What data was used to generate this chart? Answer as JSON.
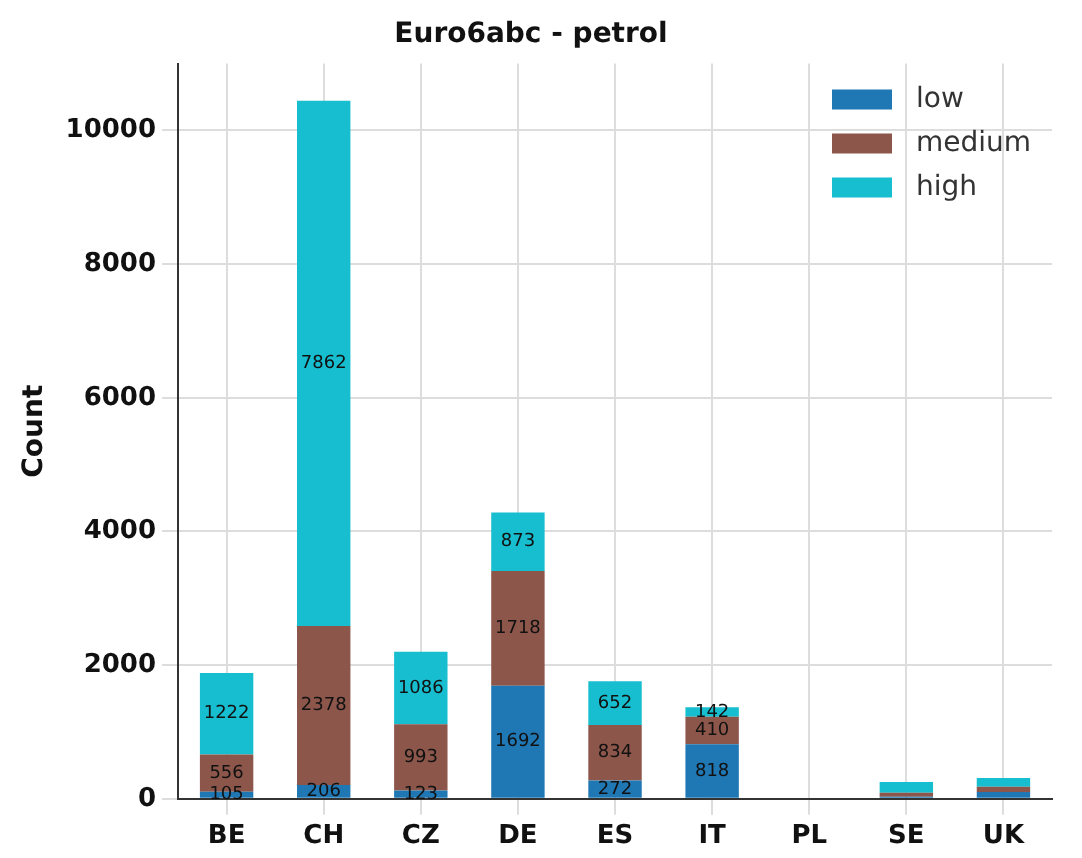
{
  "chart_data": {
    "type": "bar",
    "title": "Euro6abc - petrol",
    "ylabel": "Count",
    "categories": [
      "BE",
      "CH",
      "CZ",
      "DE",
      "ES",
      "IT",
      "PL",
      "SE",
      "UK"
    ],
    "stacked": true,
    "ylim": [
      0,
      11000
    ],
    "yticks": [
      0,
      2000,
      4000,
      6000,
      8000,
      10000
    ],
    "grid": true,
    "legend": "top right",
    "series": [
      {
        "name": "low",
        "color": "#1f77b4",
        "values": [
          105,
          206,
          123,
          1692,
          272,
          818,
          0,
          30,
          100
        ],
        "value_labels": [
          "105",
          "206",
          "123",
          "1692",
          "272",
          "818",
          null,
          null,
          null
        ]
      },
      {
        "name": "medium",
        "color": "#8c564b",
        "values": [
          556,
          2378,
          993,
          1718,
          834,
          410,
          0,
          60,
          80
        ],
        "value_labels": [
          "556",
          "2378",
          "993",
          "1718",
          "834",
          "410",
          null,
          null,
          null
        ]
      },
      {
        "name": "high",
        "color": "#17becf",
        "values": [
          1222,
          7862,
          1086,
          873,
          652,
          142,
          0,
          160,
          130
        ],
        "value_labels": [
          "1222",
          "7862",
          "1086",
          "873",
          "652",
          "142",
          null,
          null,
          null
        ]
      }
    ]
  }
}
